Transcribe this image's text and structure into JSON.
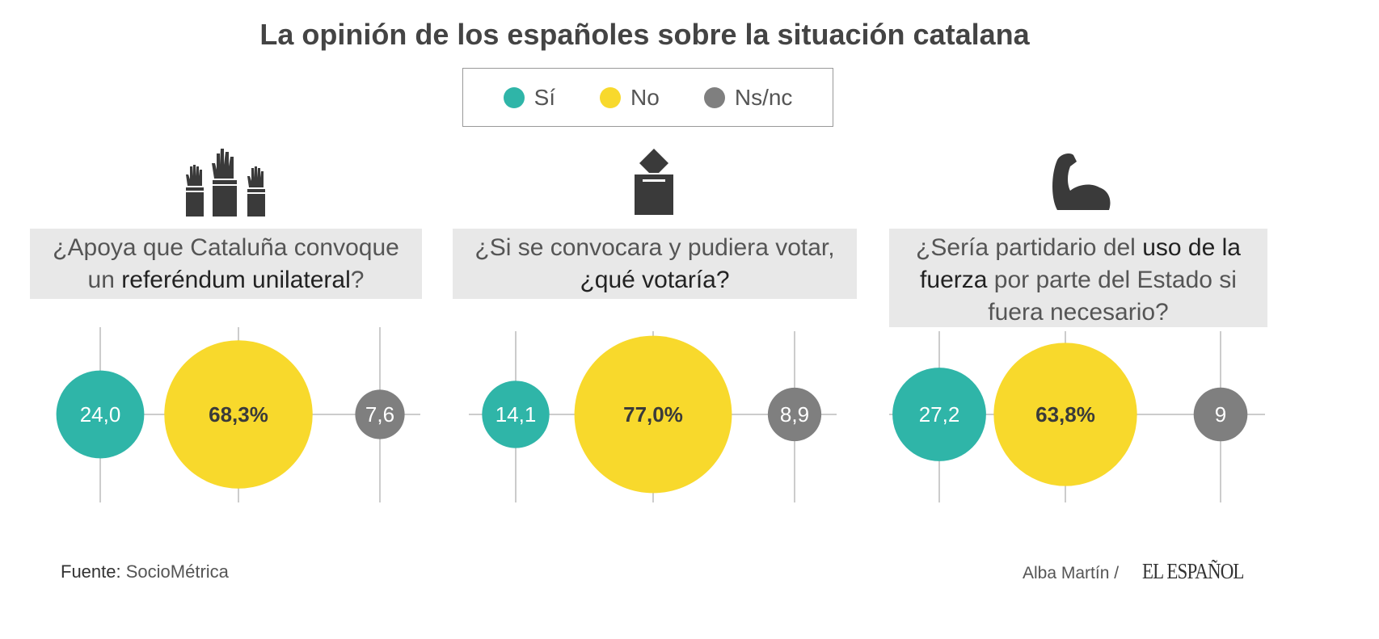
{
  "title": "La opinión de los españoles sobre la situación catalana",
  "legend": [
    {
      "label": "Sí",
      "color": "#2fb5a8"
    },
    {
      "label": "No",
      "color": "#f8d92c"
    },
    {
      "label": "Ns/nc",
      "color": "#7f7f7f"
    }
  ],
  "chart_data": {
    "type": "bubble",
    "title": "La opinión de los españoles sobre la situación catalana",
    "series_names": [
      "Sí",
      "No",
      "Ns/nc"
    ],
    "panels": [
      {
        "icon": "raised-hands-icon",
        "question_parts": [
          {
            "t": "¿Apoya que Cataluña convoque un ",
            "b": false
          },
          {
            "t": "referéndum unilateral",
            "b": true
          },
          {
            "t": "?",
            "b": false
          }
        ],
        "values": [
          24.0,
          68.3,
          7.6
        ],
        "labels": [
          "24,0",
          "68,3%",
          "7,6"
        ]
      },
      {
        "icon": "ballot-box-icon",
        "question_parts": [
          {
            "t": "¿Si se convocara y pudiera votar, ",
            "b": false
          },
          {
            "t": "¿qué votaría?",
            "b": true
          }
        ],
        "values": [
          14.1,
          77.0,
          8.9
        ],
        "labels": [
          "14,1",
          "77,0%",
          "8,9"
        ]
      },
      {
        "icon": "flexed-bicep-icon",
        "question_parts": [
          {
            "t": "¿Sería partidario del ",
            "b": false
          },
          {
            "t": "uso de la fuerza",
            "b": true
          },
          {
            "t": " por parte del Estado si fuera necesario?",
            "b": false
          }
        ],
        "values": [
          27.2,
          63.8,
          9
        ],
        "labels": [
          "27,2",
          "63,8%",
          "9"
        ]
      }
    ]
  },
  "footer": {
    "source_label": "Fuente:",
    "source": "SocioMétrica",
    "author": "Alba Martín /",
    "brand": "EL ESPAÑOL"
  }
}
